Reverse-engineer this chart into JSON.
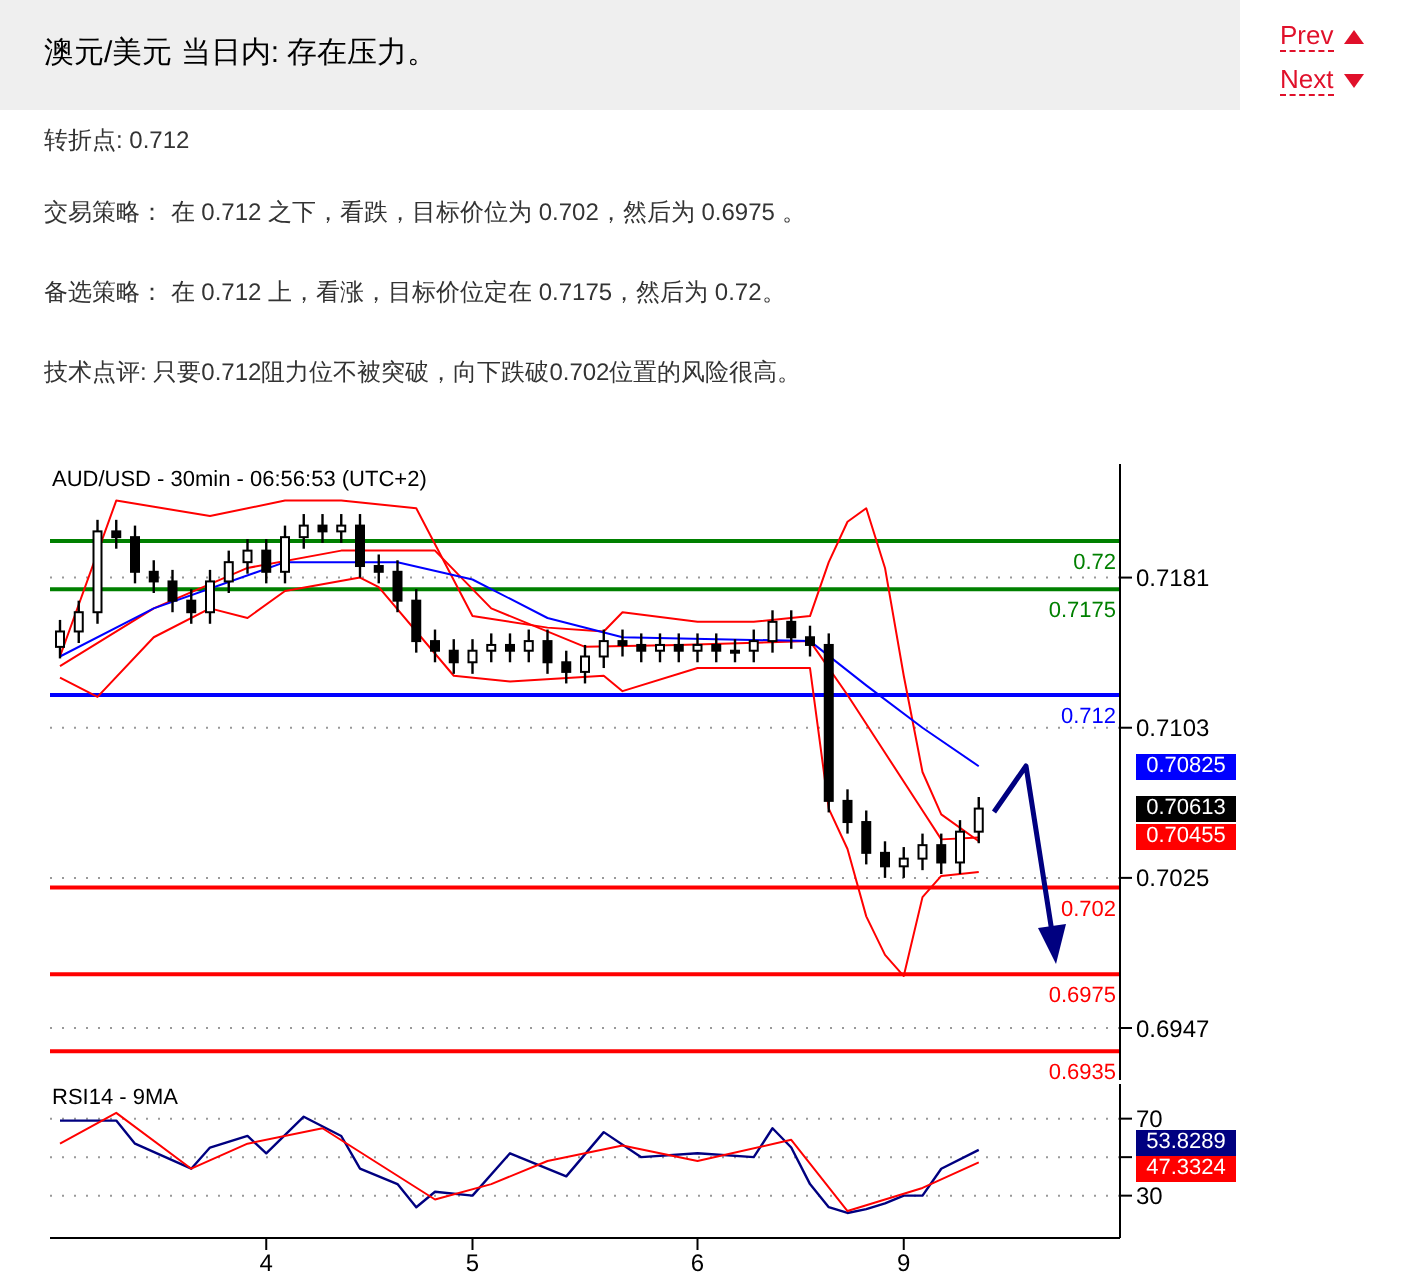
{
  "chart_data": [
    {
      "type": "candlestick",
      "title": "澳元/美元 当日内: 存在压力。",
      "subtitle": "AUD/USD - 30min - 06:56:53 (UTC+2)",
      "annotations": [
        "Prev",
        "Next",
        "转折点: 0.712",
        "交易策略： 在 0.712 之下，看跌，目标价位为 0.702，然后为 0.6975 。",
        "备选策略： 在 0.712 上，看涨，目标价位定在 0.7175，然后为 0.72。",
        "技术点评: 只要0.712阻力位不被突破，向下跌破0.702位置的风险很高。",
        "0.70825",
        "0.70613",
        "0.70455"
      ],
      "categories": [
        null,
        null,
        null,
        null,
        null,
        null,
        null,
        null,
        null,
        null,
        null,
        "4",
        null,
        null,
        null,
        null,
        null,
        null,
        null,
        null,
        null,
        null,
        "5",
        null,
        null,
        null,
        null,
        null,
        null,
        null,
        null,
        null,
        null,
        null,
        "6",
        null,
        null,
        null,
        null,
        null,
        null,
        null,
        null,
        null,
        null,
        "9",
        null,
        null,
        null,
        null,
        null,
        null,
        null,
        null,
        null,
        null,
        null
      ],
      "ohlc": [
        [
          0.7145,
          0.7159,
          0.7139,
          0.7153
        ],
        [
          0.7153,
          0.7169,
          0.7147,
          0.7163
        ],
        [
          0.7163,
          0.7211,
          0.7157,
          0.7205
        ],
        [
          0.7205,
          0.7211,
          0.7196,
          0.7202
        ],
        [
          0.7202,
          0.7208,
          0.7178,
          0.7184
        ],
        [
          0.7184,
          0.719,
          0.7173,
          0.7179
        ],
        [
          0.7179,
          0.7185,
          0.7163,
          0.7169
        ],
        [
          0.7169,
          0.7175,
          0.7157,
          0.7163
        ],
        [
          0.7163,
          0.7185,
          0.7157,
          0.7179
        ],
        [
          0.7179,
          0.7195,
          0.7173,
          0.7189
        ],
        [
          0.7189,
          0.7201,
          0.7183,
          0.7195
        ],
        [
          0.7195,
          0.7201,
          0.7178,
          0.7184
        ],
        [
          0.7184,
          0.7208,
          0.7178,
          0.7202
        ],
        [
          0.7202,
          0.7214,
          0.7196,
          0.7208
        ],
        [
          0.7208,
          0.7214,
          0.7199,
          0.7205
        ],
        [
          0.7205,
          0.7214,
          0.7199,
          0.7208
        ],
        [
          0.7208,
          0.7214,
          0.7181,
          0.7187
        ],
        [
          0.7187,
          0.7193,
          0.7178,
          0.7184
        ],
        [
          0.7184,
          0.719,
          0.7163,
          0.7169
        ],
        [
          0.7169,
          0.7175,
          0.7142,
          0.7148
        ],
        [
          0.7148,
          0.7154,
          0.7137,
          0.7143
        ],
        [
          0.7143,
          0.7149,
          0.7131,
          0.7137
        ],
        [
          0.7137,
          0.7149,
          0.7131,
          0.7143
        ],
        [
          0.7143,
          0.7152,
          0.7137,
          0.7146
        ],
        [
          0.7146,
          0.7152,
          0.7137,
          0.7143
        ],
        [
          0.7143,
          0.7154,
          0.7137,
          0.7148
        ],
        [
          0.7148,
          0.7154,
          0.7131,
          0.7137
        ],
        [
          0.7137,
          0.7143,
          0.7126,
          0.7132
        ],
        [
          0.7132,
          0.7146,
          0.7126,
          0.714
        ],
        [
          0.714,
          0.7154,
          0.7134,
          0.7148
        ],
        [
          0.7148,
          0.7154,
          0.714,
          0.7146
        ],
        [
          0.7146,
          0.7152,
          0.7137,
          0.7143
        ],
        [
          0.7143,
          0.7152,
          0.7137,
          0.7146
        ],
        [
          0.7146,
          0.7152,
          0.7137,
          0.7143
        ],
        [
          0.7143,
          0.7152,
          0.7137,
          0.7146
        ],
        [
          0.7146,
          0.7152,
          0.7137,
          0.7143
        ],
        [
          0.7143,
          0.7149,
          0.7137,
          0.7143
        ],
        [
          0.7143,
          0.7154,
          0.7137,
          0.7148
        ],
        [
          0.7148,
          0.7164,
          0.7142,
          0.7158
        ],
        [
          0.7158,
          0.7164,
          0.7144,
          0.715
        ],
        [
          0.715,
          0.7156,
          0.714,
          0.7146
        ],
        [
          0.7146,
          0.7152,
          0.7059,
          0.7065
        ],
        [
          0.7065,
          0.7071,
          0.7048,
          0.7054
        ],
        [
          0.7054,
          0.706,
          0.7032,
          0.7038
        ],
        [
          0.7038,
          0.7044,
          0.7025,
          0.7031
        ],
        [
          0.7031,
          0.7041,
          0.7025,
          0.7035
        ],
        [
          0.7035,
          0.7048,
          0.7029,
          0.7042
        ],
        [
          0.7042,
          0.7048,
          0.7027,
          0.7033
        ],
        [
          0.7033,
          0.7055,
          0.7027,
          0.7049
        ],
        [
          0.7049,
          0.7067,
          0.7043,
          0.7061
        ],
        null,
        null,
        null,
        null,
        null,
        null,
        null
      ],
      "series": [
        {
          "type": "line",
          "color": "#ff0000",
          "values": [
            0.714,
            null,
            null,
            0.7221,
            null,
            null,
            null,
            null,
            0.7213,
            null,
            null,
            null,
            0.7221,
            null,
            null,
            0.7221,
            null,
            null,
            null,
            0.7217,
            null,
            null,
            0.7161,
            null,
            null,
            null,
            0.7155,
            null,
            null,
            0.7153,
            0.7163,
            null,
            null,
            null,
            0.7158,
            null,
            null,
            0.7158,
            null,
            null,
            0.7161,
            0.7189,
            0.721,
            0.7217,
            0.7186,
            0.713,
            0.708,
            0.7058,
            null,
            0.7044,
            null,
            null,
            null,
            null,
            null,
            null,
            null
          ]
        },
        {
          "type": "line",
          "color": "#ff0000",
          "values": [
            0.7129,
            null,
            0.7119,
            null,
            null,
            0.715,
            null,
            null,
            0.7165,
            null,
            0.716,
            null,
            0.7174,
            null,
            null,
            null,
            0.7181,
            0.7176,
            null,
            null,
            null,
            0.713,
            null,
            null,
            0.7127,
            null,
            null,
            null,
            null,
            0.713,
            0.7122,
            null,
            null,
            null,
            0.7134,
            null,
            null,
            null,
            null,
            null,
            0.7134,
            0.7061,
            0.704,
            0.7005,
            0.6985,
            0.6974,
            0.7015,
            0.7026,
            null,
            0.7028,
            null,
            null,
            null,
            null,
            null,
            null,
            null
          ]
        },
        {
          "type": "line",
          "color": "#ff0000",
          "values": [
            0.7135,
            null,
            null,
            null,
            null,
            0.7165,
            null,
            null,
            null,
            null,
            0.7186,
            null,
            null,
            null,
            null,
            0.7195,
            null,
            null,
            null,
            null,
            0.7195,
            null,
            null,
            0.7165,
            null,
            null,
            null,
            null,
            0.7145,
            null,
            null,
            null,
            null,
            0.7146,
            null,
            null,
            null,
            null,
            null,
            null,
            0.7148,
            null,
            0.712,
            null,
            0.709,
            null,
            0.706,
            0.7045,
            null,
            0.7046,
            null,
            null,
            null,
            null,
            null,
            null,
            null
          ]
        },
        {
          "type": "line",
          "color": "#0000ff",
          "values": [
            0.714,
            null,
            null,
            null,
            null,
            0.7165,
            null,
            null,
            null,
            null,
            null,
            null,
            0.7189,
            null,
            null,
            null,
            null,
            null,
            0.7189,
            null,
            null,
            null,
            0.718,
            null,
            null,
            null,
            0.716,
            null,
            null,
            null,
            0.715,
            null,
            null,
            null,
            null,
            null,
            null,
            null,
            null,
            null,
            0.7148,
            null,
            null,
            0.7125,
            null,
            null,
            0.7103,
            null,
            null,
            0.7083,
            null,
            null,
            null,
            null,
            null,
            null,
            null
          ]
        }
      ],
      "ylim": [
        0.692,
        0.724
      ],
      "yticks": [
        0.7181,
        0.7103,
        0.7025,
        0.6947
      ],
      "grid": "y",
      "tick_labels": "y",
      "marker": "none",
      "line_style": "solid",
      "ref_lines": [
        {
          "axis": "y",
          "value": 0.72,
          "label": "0.72",
          "color": "#008000"
        },
        {
          "axis": "y",
          "value": 0.7175,
          "label": "0.7175",
          "color": "#008000"
        },
        {
          "axis": "y",
          "value": 0.712,
          "label": "0.712",
          "color": "#0000ff"
        },
        {
          "axis": "y",
          "value": 0.702,
          "label": "0.702",
          "color": "#ff0000"
        },
        {
          "axis": "y",
          "value": 0.6975,
          "label": "0.6975",
          "color": "#ff0000"
        },
        {
          "axis": "y",
          "value": 0.6935,
          "label": "0.6935",
          "color": "#ff0000"
        }
      ]
    },
    {
      "type": "line",
      "title": "RSI14 - 9MA",
      "categories": [
        null,
        null,
        null,
        null,
        null,
        null,
        null,
        null,
        null,
        null,
        null,
        "4",
        null,
        null,
        null,
        null,
        null,
        null,
        null,
        null,
        null,
        null,
        "5",
        null,
        null,
        null,
        null,
        null,
        null,
        null,
        null,
        null,
        null,
        null,
        "6",
        null,
        null,
        null,
        null,
        null,
        null,
        null,
        null,
        null,
        null,
        "9",
        null,
        null,
        null,
        null,
        null,
        null,
        null,
        null,
        null,
        null,
        null
      ],
      "series": [
        {
          "color": "#000080",
          "values": [
            69,
            null,
            null,
            69,
            57,
            null,
            null,
            44,
            55,
            null,
            61,
            52,
            null,
            71,
            null,
            61,
            44,
            null,
            36,
            24,
            32,
            null,
            30,
            null,
            52,
            null,
            null,
            40,
            null,
            63,
            null,
            50,
            null,
            null,
            52,
            null,
            null,
            50,
            65,
            55,
            36,
            24,
            21,
            23,
            26,
            30,
            30,
            44,
            null,
            53.8,
            null,
            null,
            null,
            null,
            null,
            null,
            null
          ]
        },
        {
          "color": "#ff0000",
          "values": [
            57,
            null,
            null,
            73,
            null,
            null,
            null,
            44,
            null,
            null,
            57,
            null,
            null,
            null,
            65,
            null,
            null,
            null,
            null,
            null,
            28,
            null,
            null,
            36,
            null,
            null,
            48,
            null,
            null,
            null,
            56,
            null,
            null,
            null,
            48,
            null,
            null,
            null,
            null,
            59,
            null,
            null,
            22,
            null,
            null,
            null,
            34,
            null,
            null,
            47.3,
            null,
            null,
            null,
            null,
            null,
            null,
            null
          ]
        }
      ],
      "annotations": [
        "53.8289",
        "47.3324"
      ],
      "ylim": [
        8,
        88
      ],
      "yticks": [
        70,
        {
          "value": 50,
          "label": null
        },
        30
      ],
      "grid": "y",
      "marker": "none",
      "line_style": "solid"
    }
  ]
}
